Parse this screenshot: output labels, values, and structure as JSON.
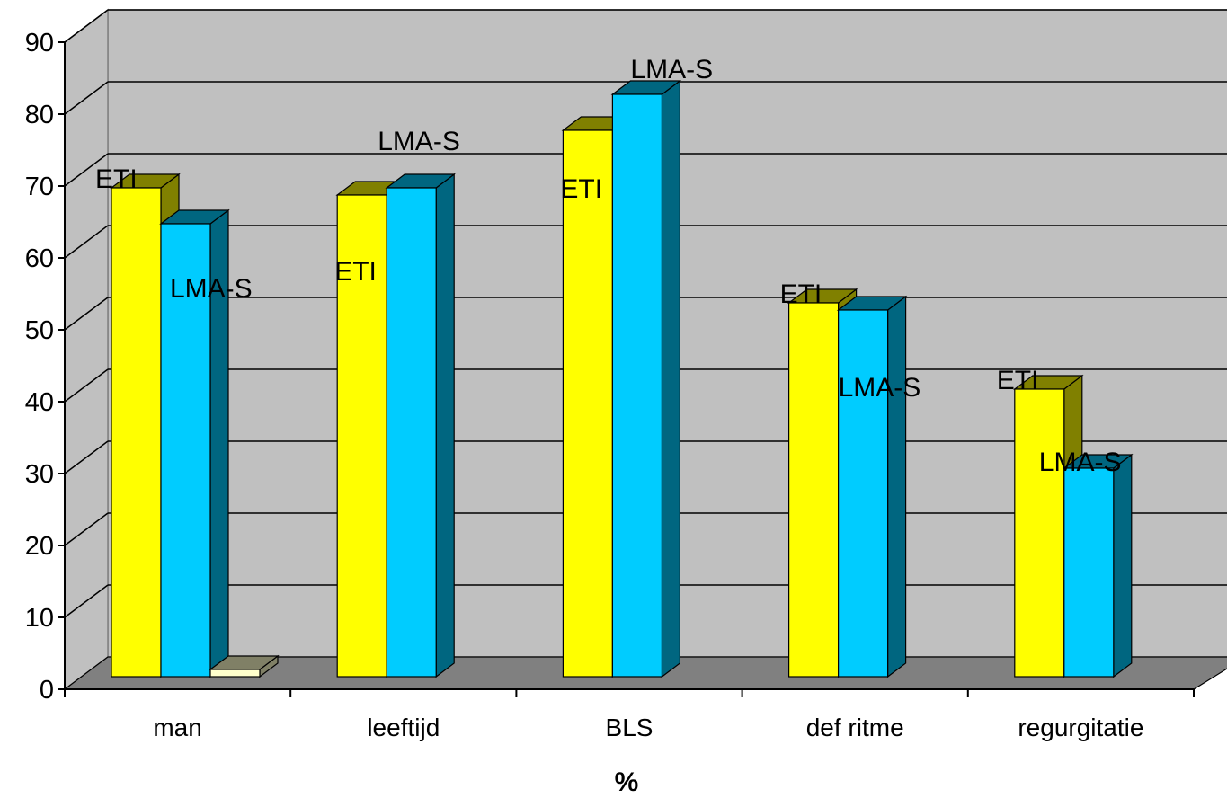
{
  "chart_data": {
    "type": "bar",
    "categories": [
      "man",
      "leeftijd",
      "BLS",
      "def ritme",
      "regurgitatie"
    ],
    "series": [
      {
        "values": [
          68,
          67,
          76,
          52,
          40
        ]
      },
      {
        "values": [
          63,
          68,
          81,
          51,
          29
        ]
      },
      {
        "values": [
          1,
          0,
          0,
          0,
          0
        ]
      }
    ],
    "series_colors": [
      "#FFFF00",
      "#00CCFF",
      "#FFFFCC"
    ],
    "series_side_colors": [
      "#808000",
      "#006680",
      "#808066"
    ],
    "data_labels": [
      {
        "category": "man",
        "ETI": "ETI",
        "LMA_S": "LMA-S"
      },
      {
        "category": "leeftijd",
        "ETI": "ETI",
        "LMA_S": "LMA-S"
      },
      {
        "category": "BLS",
        "ETI": "ETI",
        "LMA_S": "LMA-S"
      },
      {
        "category": "def ritme",
        "ETI": "ETI",
        "LMA_S": "LMA-S"
      },
      {
        "category": "regurgitatie",
        "ETI": "ETI",
        "LMA_S": "LMA-S"
      }
    ],
    "xlabel": "%",
    "ylabel": "",
    "ylim": [
      0,
      90
    ],
    "yticks": [
      "0",
      "10",
      "20",
      "30",
      "40",
      "50",
      "60",
      "70",
      "80",
      "90"
    ],
    "grid": true,
    "legend": "none",
    "style": "3d-clustered-column",
    "wall_color": "#C0C0C0",
    "floor_color": "#808080"
  }
}
